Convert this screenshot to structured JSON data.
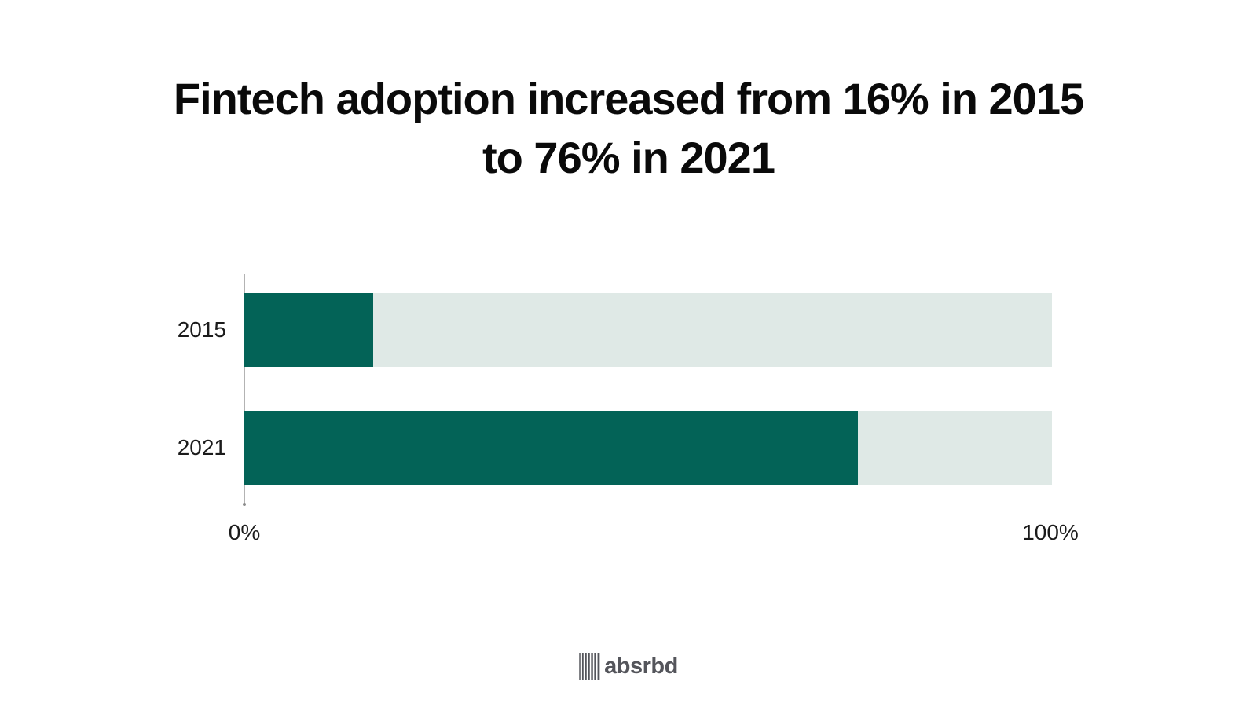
{
  "title_lines": [
    "Fintech adoption increased from 16% in 2015",
    "to 76% in 2021"
  ],
  "chart_data": {
    "type": "bar",
    "orientation": "horizontal",
    "title": "Fintech adoption increased from 16% in 2015 to 76% in 2021",
    "categories": [
      "2015",
      "2021"
    ],
    "values": [
      16,
      76
    ],
    "value_unit": "%",
    "xlim": [
      0,
      100
    ],
    "x_tick_labels": [
      "0%",
      "100%"
    ],
    "grid": false,
    "legend": false,
    "colors": {
      "bar_fill": "#036357",
      "bar_track": "#dfe9e6",
      "axis": "#b3b3b3",
      "title_text": "#0a0a0a",
      "label_text": "#1b1b1b"
    }
  },
  "footer": {
    "brand": "absrbd",
    "brand_icon": "barcode-icon",
    "brand_color": "#54555b"
  }
}
